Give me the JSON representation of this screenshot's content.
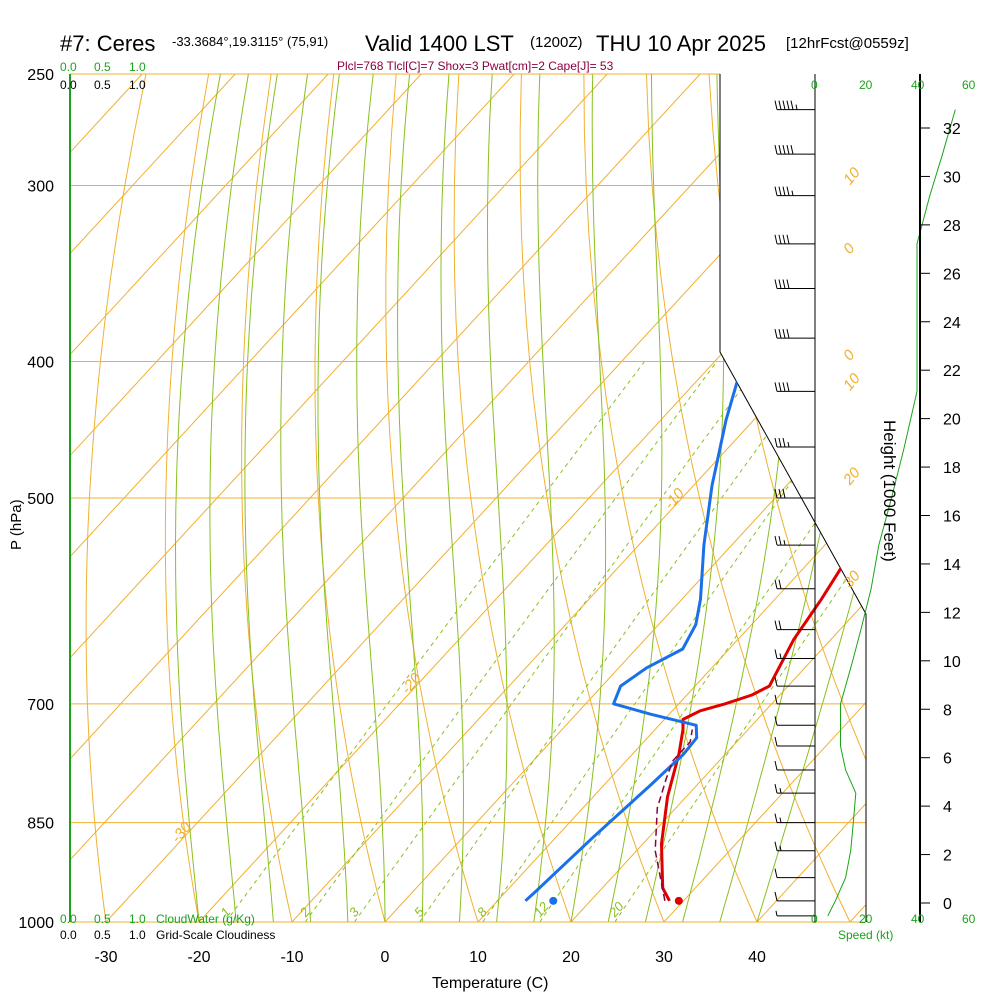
{
  "header": {
    "station": "#7: Ceres",
    "coords": "-33.3684°,19.3115° (75,91)",
    "valid": "Valid 1400 LST",
    "zulu": "(1200Z)",
    "date": "THU 10 Apr 2025",
    "forecast": "[12hrFcst@0559z]",
    "indices": "Plcl=768 Tlcl[C]=7 Shox=3 Pwat[cm]=2 Cape[J]= 53"
  },
  "colors": {
    "temperature": "#e00000",
    "dewpoint": "#1a70e8",
    "parcel": "#8b0040",
    "isotherm": "#f0b030",
    "dry_adiabat": "#f0b030",
    "moist_adiabat": "#88c020",
    "mixing_ratio": "#88c020",
    "cloud": "#1aa31a"
  },
  "labels": {
    "cloud_top": [
      "0.0",
      "0.5",
      "1.0"
    ],
    "cloud_top2": [
      "0.0",
      "0.5",
      "1.0"
    ],
    "cloud_bottom": [
      "0.0",
      "0.5",
      "1.0"
    ],
    "cloud_bottom2": [
      "0.0",
      "0.5",
      "1.0"
    ],
    "cloudwater": "CloudWater (g/Kg)",
    "cloudiness": "Grid-Scale Cloudiness",
    "speed_top": [
      "0",
      "20",
      "40",
      "60"
    ],
    "speed_bottom": [
      "0",
      "20",
      "40",
      "60"
    ],
    "speed_label": "Speed (kt)",
    "height_label": "Height (1000 Feet)",
    "p_label": "P (hPa)",
    "t_label": "Temperature (C)"
  },
  "chart_data": {
    "type": "line",
    "title": "#7: Ceres  Valid 1400 LST (1200Z) THU 10 Apr 2025",
    "xlabel": "Temperature (C)",
    "ylabel": "P (hPa)",
    "xlim": [
      -35,
      52
    ],
    "pressure_ticks": [
      250,
      300,
      400,
      500,
      700,
      850,
      1000
    ],
    "temperature_ticks": [
      -30,
      -20,
      -10,
      0,
      10,
      20,
      30,
      40
    ],
    "height_ticks": [
      0,
      2,
      4,
      6,
      8,
      10,
      12,
      14,
      16,
      18,
      20,
      22,
      24,
      26,
      28,
      30,
      32
    ],
    "isotherm_labels": [
      {
        "text": "10",
        "t": 10,
        "p": 300
      },
      {
        "text": "0",
        "t": 0,
        "p": 400
      },
      {
        "text": "-10",
        "t": -10,
        "p": 510
      },
      {
        "text": "-20",
        "t": -20,
        "p": 690
      },
      {
        "text": "-30",
        "t": -30,
        "p": 880
      },
      {
        "text": "0",
        "t": 0,
        "p": 336
      },
      {
        "text": "10",
        "t": 10,
        "p": 420
      },
      {
        "text": "20",
        "t": 20,
        "p": 490
      },
      {
        "text": "30",
        "t": 30,
        "p": 580
      }
    ],
    "mixing_ratio_labels": [
      "1",
      "2",
      "3",
      "5",
      "8",
      "12",
      "20"
    ],
    "series": [
      {
        "name": "Temperature",
        "points": [
          [
            28.5,
            966
          ],
          [
            26.5,
            946
          ],
          [
            22,
            880
          ],
          [
            18,
            815
          ],
          [
            15,
            760
          ],
          [
            13,
            730
          ],
          [
            12,
            718
          ],
          [
            13,
            708
          ],
          [
            15,
            700
          ],
          [
            17,
            690
          ],
          [
            18,
            680
          ],
          [
            16,
            630
          ],
          [
            15,
            590
          ],
          [
            14,
            560
          ],
          [
            12,
            520
          ],
          [
            9,
            470
          ],
          [
            6,
            420
          ],
          [
            3,
            370
          ],
          [
            0,
            330
          ],
          [
            -1,
            305
          ],
          [
            -2,
            285
          ],
          [
            -2,
            265
          ]
        ]
      },
      {
        "name": "Dewpoint",
        "points": [
          [
            13,
            966
          ],
          [
            13.2,
            950
          ],
          [
            14,
            870
          ],
          [
            15,
            800
          ],
          [
            15.5,
            760
          ],
          [
            15.3,
            740
          ],
          [
            14,
            725
          ],
          [
            8,
            712
          ],
          [
            3,
            700
          ],
          [
            2,
            680
          ],
          [
            3,
            660
          ],
          [
            5,
            640
          ],
          [
            4,
            615
          ],
          [
            2,
            590
          ],
          [
            -3,
            540
          ],
          [
            -8,
            490
          ],
          [
            -13,
            440
          ],
          [
            -18,
            390
          ],
          [
            -24,
            350
          ],
          [
            -27,
            330
          ],
          [
            -26,
            300
          ],
          [
            -25,
            270
          ],
          [
            -24,
            255
          ]
        ]
      },
      {
        "name": "Parcel",
        "points": [
          [
            28,
            966
          ],
          [
            22,
            890
          ],
          [
            18,
            830
          ],
          [
            16,
            790
          ],
          [
            15,
            768
          ],
          [
            15,
            745
          ],
          [
            14,
            730
          ]
        ]
      }
    ],
    "surface_points": [
      {
        "name": "Surface T",
        "t": 29.5,
        "p": 966
      },
      {
        "name": "Surface Td",
        "t": 16,
        "p": 966
      }
    ],
    "wind_barbs": [
      {
        "p": 990,
        "speed_kt": 5
      },
      {
        "p": 966,
        "speed_kt": 8
      },
      {
        "p": 930,
        "speed_kt": 12
      },
      {
        "p": 890,
        "speed_kt": 14
      },
      {
        "p": 850,
        "speed_kt": 15
      },
      {
        "p": 810,
        "speed_kt": 16
      },
      {
        "p": 780,
        "speed_kt": 12
      },
      {
        "p": 750,
        "speed_kt": 10
      },
      {
        "p": 725,
        "speed_kt": 10
      },
      {
        "p": 700,
        "speed_kt": 10
      },
      {
        "p": 680,
        "speed_kt": 12
      },
      {
        "p": 650,
        "speed_kt": 15
      },
      {
        "p": 620,
        "speed_kt": 18
      },
      {
        "p": 580,
        "speed_kt": 22
      },
      {
        "p": 540,
        "speed_kt": 25
      },
      {
        "p": 500,
        "speed_kt": 30
      },
      {
        "p": 460,
        "speed_kt": 35
      },
      {
        "p": 420,
        "speed_kt": 40
      },
      {
        "p": 385,
        "speed_kt": 40
      },
      {
        "p": 355,
        "speed_kt": 40
      },
      {
        "p": 330,
        "speed_kt": 40
      },
      {
        "p": 305,
        "speed_kt": 45
      },
      {
        "p": 285,
        "speed_kt": 50
      },
      {
        "p": 265,
        "speed_kt": 55
      }
    ]
  }
}
